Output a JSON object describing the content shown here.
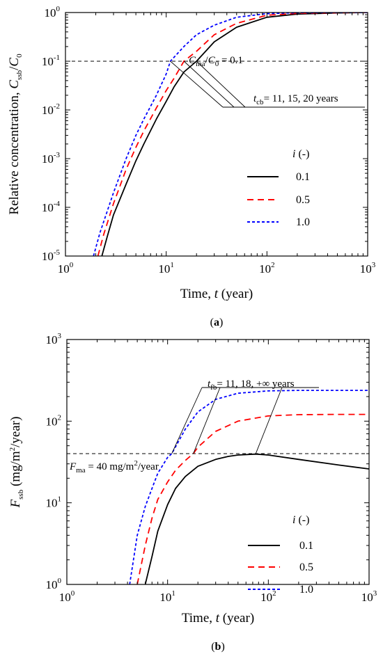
{
  "chart_data": [
    {
      "type": "line",
      "panel_label": "(a)",
      "xlabel": "Time, t (year)",
      "ylabel": "Relative concentration, Cssb/C0",
      "xscale": "log",
      "yscale": "log",
      "xlim": [
        1,
        1000
      ],
      "ylim": [
        1e-05,
        1
      ],
      "x_ticks": [
        {
          "base": "10",
          "exp": "0"
        },
        {
          "base": "10",
          "exp": "1"
        },
        {
          "base": "10",
          "exp": "2"
        },
        {
          "base": "10",
          "exp": "3"
        }
      ],
      "y_ticks": [
        {
          "base": "10",
          "exp": "-5"
        },
        {
          "base": "10",
          "exp": "-4"
        },
        {
          "base": "10",
          "exp": "-3"
        },
        {
          "base": "10",
          "exp": "-2"
        },
        {
          "base": "10",
          "exp": "-1"
        },
        {
          "base": "10",
          "exp": "0"
        }
      ],
      "legend_title": "i (-)",
      "legend_position": "center-right",
      "threshold": {
        "y": 0.1,
        "label": "Cma/C0 = 0.1"
      },
      "annotation": {
        "text": "tcb= 11, 15, 20 years",
        "x_values": [
          11,
          15,
          20
        ]
      },
      "series": [
        {
          "name": "0.1",
          "color": "#000000",
          "style": "solid",
          "x": [
            2.3,
            2.6,
            3,
            4,
            5,
            6,
            8,
            10,
            12,
            15,
            20,
            30,
            50,
            100,
            200,
            500,
            1000
          ],
          "y": [
            1e-05,
            2.5e-05,
            7e-05,
            0.0003,
            0.0009,
            0.002,
            0.0065,
            0.015,
            0.03,
            0.06,
            0.1,
            0.25,
            0.5,
            0.8,
            0.93,
            0.98,
            1.0
          ]
        },
        {
          "name": "0.5",
          "color": "#ff0000",
          "style": "dashed",
          "x": [
            2.1,
            2.4,
            3,
            4,
            5,
            6,
            8,
            10,
            12,
            15,
            20,
            30,
            50,
            100,
            200,
            500,
            1000
          ],
          "y": [
            1e-05,
            2.8e-05,
            0.00012,
            0.0006,
            0.0017,
            0.0037,
            0.011,
            0.025,
            0.045,
            0.1,
            0.16,
            0.35,
            0.6,
            0.88,
            0.96,
            0.99,
            1.0
          ]
        },
        {
          "name": "1.0",
          "color": "#0000ff",
          "style": "dotted",
          "x": [
            1.9,
            2.2,
            3,
            4,
            5,
            6,
            8,
            10,
            11,
            15,
            20,
            30,
            50,
            100,
            200,
            500,
            1000
          ],
          "y": [
            1e-05,
            3e-05,
            0.0002,
            0.001,
            0.003,
            0.0065,
            0.02,
            0.055,
            0.1,
            0.2,
            0.35,
            0.55,
            0.8,
            0.95,
            0.99,
            1.0,
            1.0
          ]
        }
      ]
    },
    {
      "type": "line",
      "panel_label": "(b)",
      "xlabel": "Time, t (year)",
      "ylabel": "Fssb (mg/m2/year)",
      "xscale": "log",
      "yscale": "log",
      "xlim": [
        1,
        1000
      ],
      "ylim": [
        1,
        1000
      ],
      "x_ticks": [
        {
          "base": "10",
          "exp": "0"
        },
        {
          "base": "10",
          "exp": "1"
        },
        {
          "base": "10",
          "exp": "2"
        },
        {
          "base": "10",
          "exp": "3"
        }
      ],
      "y_ticks": [
        {
          "base": "10",
          "exp": "0"
        },
        {
          "base": "10",
          "exp": "1"
        },
        {
          "base": "10",
          "exp": "2"
        },
        {
          "base": "10",
          "exp": "3"
        }
      ],
      "legend_title": "i (-)",
      "legend_position": "bottom-right",
      "threshold": {
        "y": 40,
        "label": "Fma = 40 mg/m2/year"
      },
      "annotation": {
        "text": "tfb= 11, 18, +∞ years",
        "x_values": [
          11,
          18,
          75
        ]
      },
      "series": [
        {
          "name": "0.1",
          "color": "#000000",
          "style": "solid",
          "x": [
            6,
            7,
            8,
            10,
            12,
            15,
            20,
            30,
            40,
            50,
            75,
            100,
            200,
            500,
            1000
          ],
          "y": [
            1,
            2.2,
            4.5,
            9.5,
            15,
            21,
            28,
            34,
            37,
            38.5,
            39.5,
            38.5,
            34,
            29,
            26
          ]
        },
        {
          "name": "0.5",
          "color": "#ff0000",
          "style": "dashed",
          "x": [
            5,
            6,
            7,
            8,
            10,
            12,
            15,
            18,
            20,
            30,
            50,
            100,
            200,
            500,
            1000
          ],
          "y": [
            1,
            3,
            6.5,
            11,
            18,
            25,
            33,
            40,
            48,
            75,
            100,
            116,
            120,
            121,
            121
          ]
        },
        {
          "name": "1.0",
          "color": "#0000ff",
          "style": "dotted",
          "x": [
            4.2,
            5,
            6,
            7,
            8,
            10,
            11,
            15,
            20,
            30,
            50,
            100,
            200,
            500,
            1000
          ],
          "y": [
            1,
            4,
            9,
            15,
            23,
            36,
            40,
            80,
            130,
            185,
            220,
            235,
            238,
            238,
            238
          ]
        }
      ]
    }
  ]
}
